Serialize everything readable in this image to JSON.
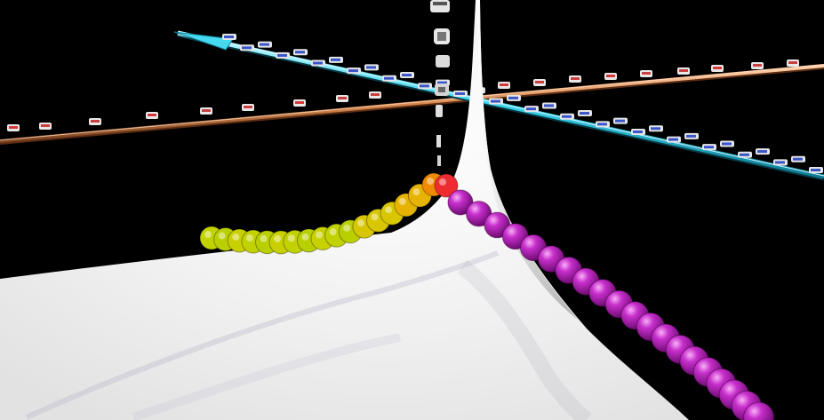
{
  "scene": {
    "background": "#000000",
    "surface_color": "#ffffff",
    "spike_color": "#d9d9d9",
    "shadow_color": "#b8b8c8",
    "axis_blue": {
      "color": "#3ad6f0",
      "labels": []
    },
    "axis_orange": {
      "color": "#d98a52",
      "labels": []
    },
    "axis_vertical": {
      "color": "#e8e8e8",
      "labels": []
    },
    "yellow_chain": {
      "count": 17,
      "colors": [
        "#c2d200",
        "#b9cf00",
        "#c9d000",
        "#d8c600",
        "#e6b300",
        "#f08a00",
        "#ef2a2a"
      ]
    },
    "magenta_chain": {
      "count": 20,
      "color": "#b21cb8",
      "highlight": "#f28ef0"
    }
  }
}
